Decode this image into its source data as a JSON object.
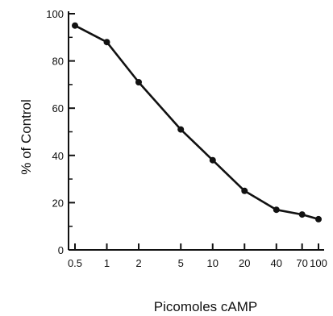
{
  "chart_data": {
    "type": "line",
    "title": "",
    "xlabel": "Picomoles   сAMP",
    "ylabel": "% of Control",
    "x_scale": "log",
    "y_range": [
      0,
      100
    ],
    "y_ticks": [
      0,
      20,
      40,
      60,
      80,
      100
    ],
    "x_ticks": [
      {
        "value": 0.5,
        "label": "0.5"
      },
      {
        "value": 1,
        "label": "1"
      },
      {
        "value": 2,
        "label": "2"
      },
      {
        "value": 5,
        "label": "5"
      },
      {
        "value": 10,
        "label": "10"
      },
      {
        "value": 20,
        "label": "20"
      },
      {
        "value": 40,
        "label": "40"
      },
      {
        "value": 70,
        "label": "70"
      },
      {
        "value": 100,
        "label": "100"
      }
    ],
    "x_tick_positions_data": [
      0.5,
      1,
      2,
      5,
      10,
      20,
      40,
      70,
      100
    ],
    "series": [
      {
        "x": [
          0.5,
          1,
          2,
          5,
          10,
          20,
          40,
          70,
          100
        ],
        "y": [
          95,
          88,
          71,
          51,
          38,
          25,
          17,
          15,
          13
        ]
      }
    ],
    "grid": false,
    "line_color": "#111111",
    "marker_color": "#111111"
  }
}
